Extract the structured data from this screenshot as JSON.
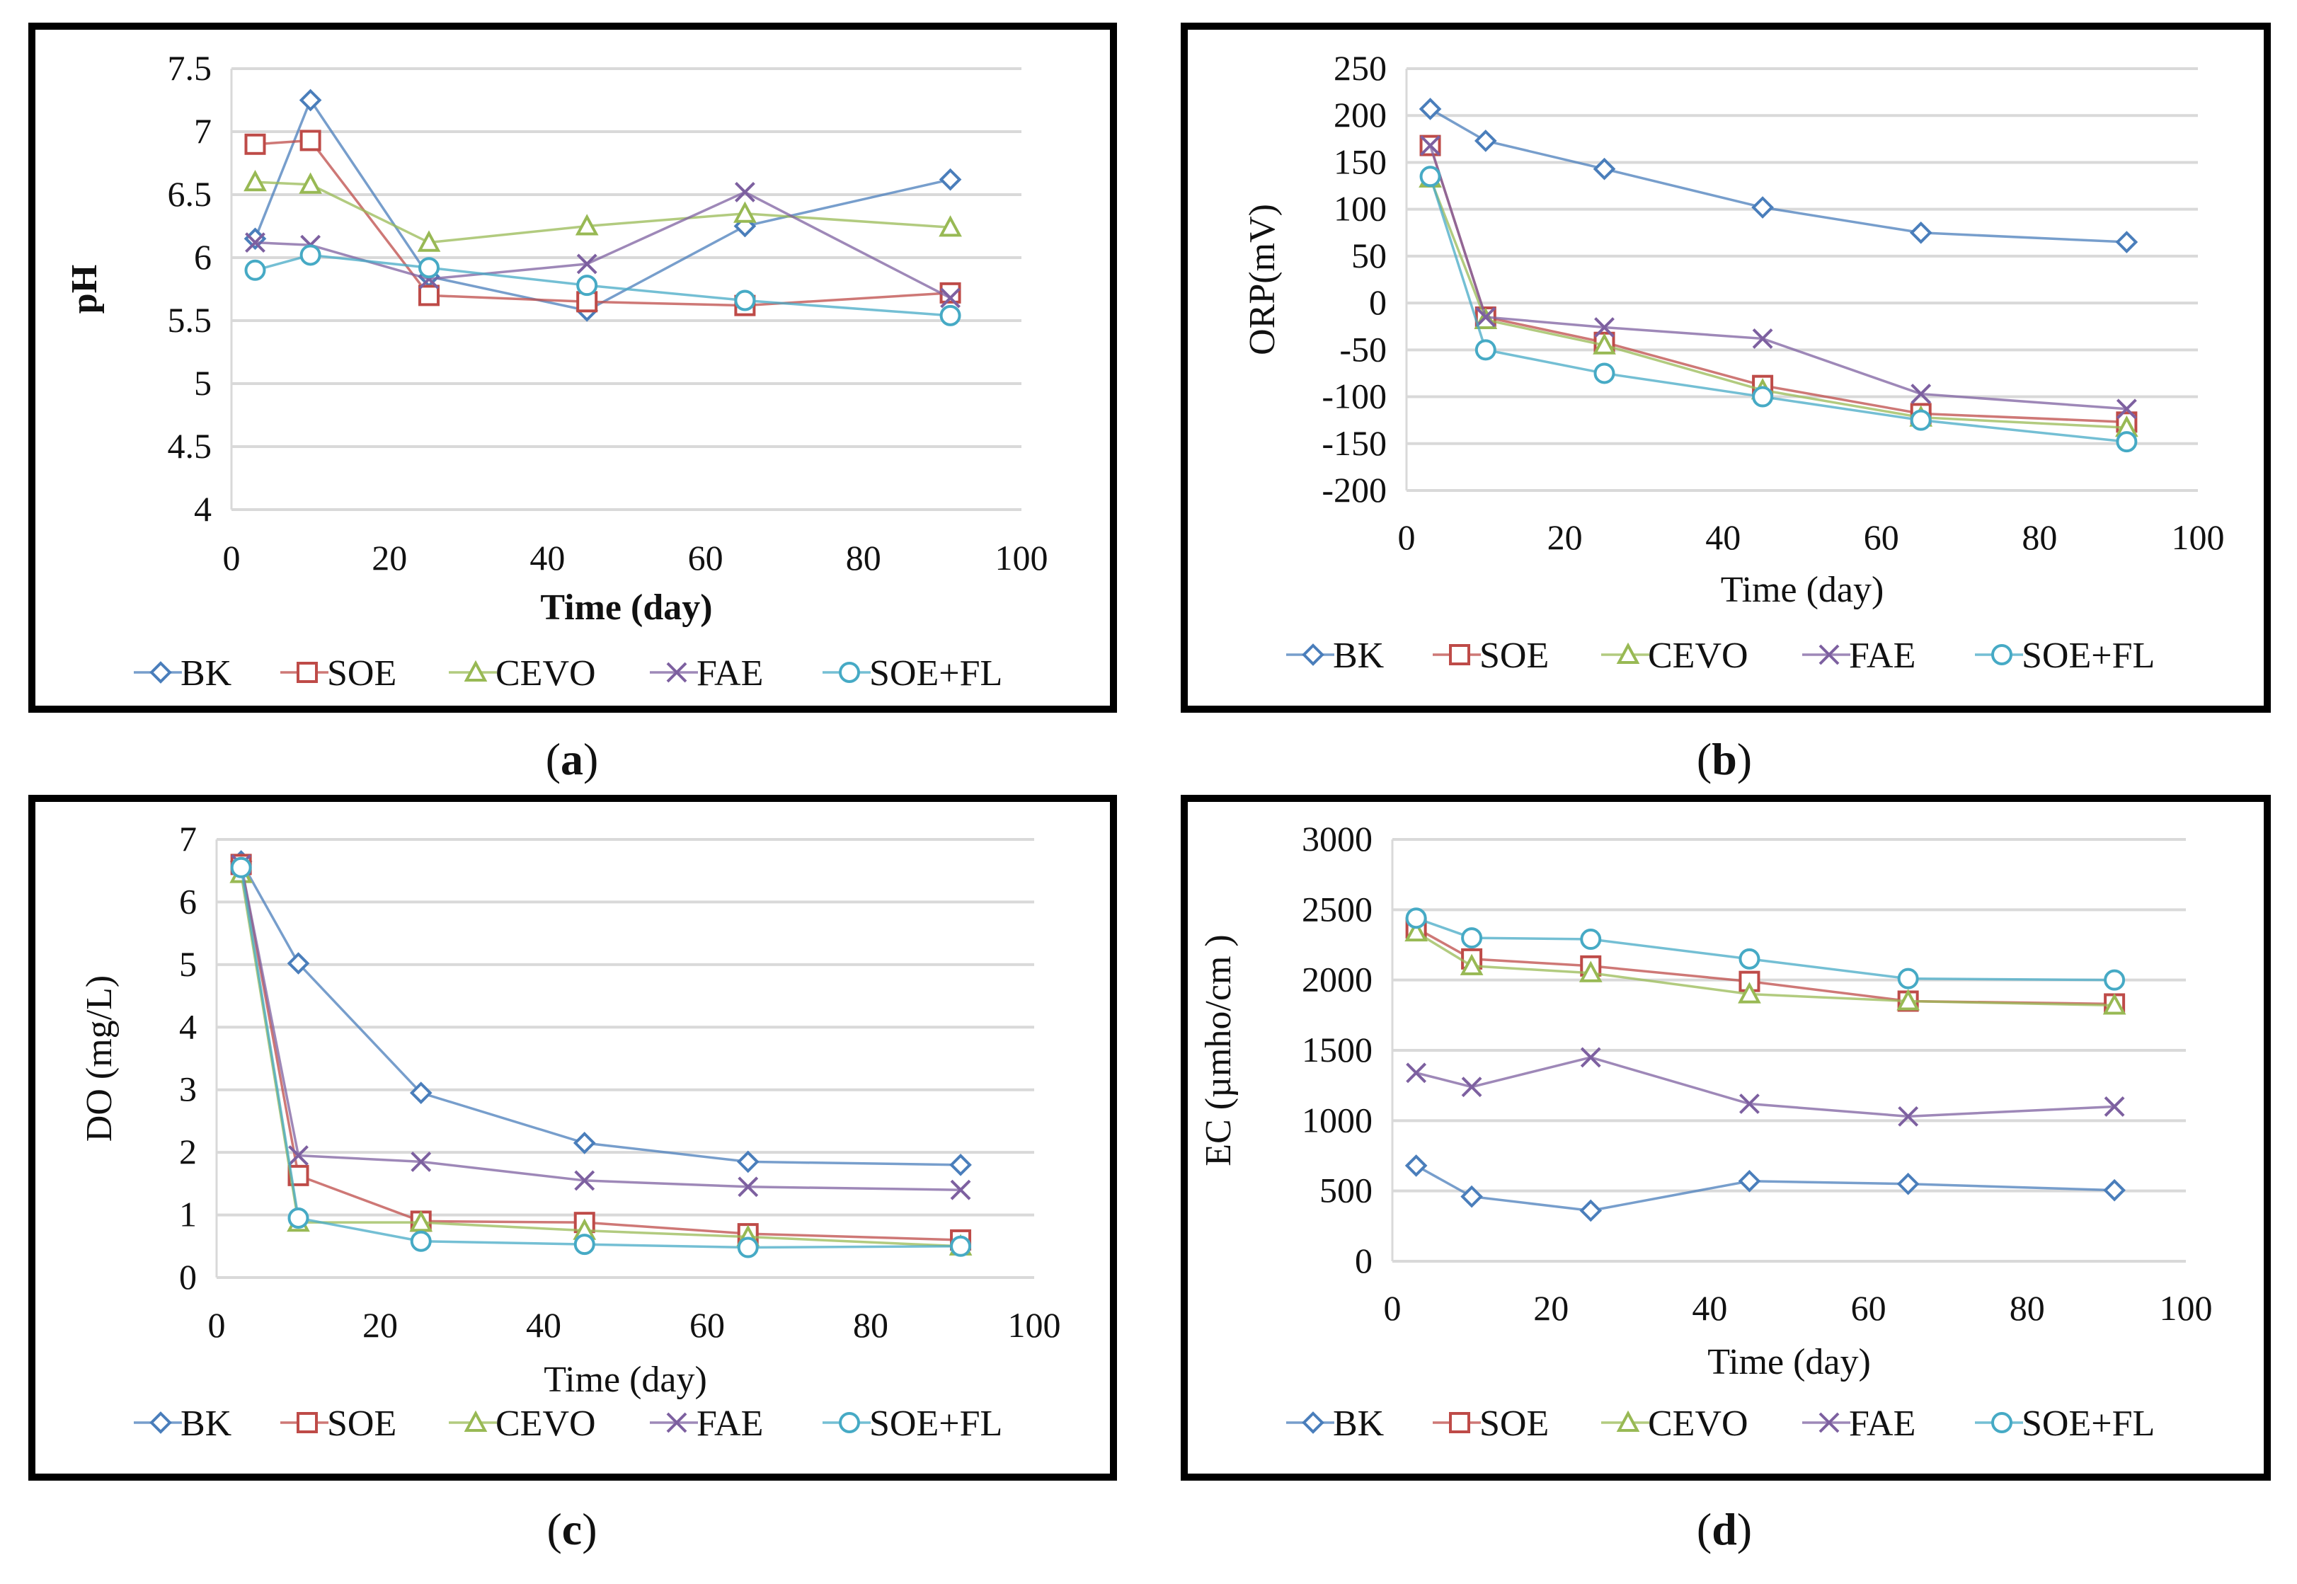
{
  "series_colors": {
    "BK": "#4a7ebb",
    "SOE": "#be4b48",
    "CEVO": "#98b954",
    "FAE": "#7d60a0",
    "SOE+FL": "#46aac5"
  },
  "chart_data": [
    {
      "type": "line",
      "panel_label": "a",
      "ylabel": "pH",
      "xlabel": "Time (day)",
      "xlim": [
        0,
        100
      ],
      "xticks": [
        0,
        20,
        40,
        60,
        80,
        100
      ],
      "ylim": [
        4,
        7.5
      ],
      "yticks": [
        "4",
        "4.5",
        "5",
        "5.5",
        "6",
        "6.5",
        "7",
        "7.5"
      ],
      "grid": true,
      "legend_position": "bottom",
      "x": [
        3,
        10,
        25,
        45,
        65,
        91
      ],
      "series": [
        {
          "name": "BK",
          "marker": "diamond",
          "values": [
            6.15,
            7.25,
            5.85,
            5.58,
            6.25,
            6.62
          ]
        },
        {
          "name": "SOE",
          "marker": "square",
          "values": [
            6.9,
            6.93,
            5.7,
            5.65,
            5.62,
            5.72
          ]
        },
        {
          "name": "CEVO",
          "marker": "triangle",
          "values": [
            6.6,
            6.58,
            6.12,
            6.25,
            6.35,
            6.24
          ]
        },
        {
          "name": "FAE",
          "marker": "x",
          "values": [
            6.12,
            6.1,
            5.83,
            5.95,
            6.52,
            5.68
          ]
        },
        {
          "name": "SOE+FL",
          "marker": "circle",
          "values": [
            5.9,
            6.02,
            5.92,
            5.78,
            5.66,
            5.54
          ]
        }
      ]
    },
    {
      "type": "line",
      "panel_label": "b",
      "ylabel": "ORP(mV)",
      "xlabel": "Time (day)",
      "xlim": [
        0,
        100
      ],
      "xticks": [
        0,
        20,
        40,
        60,
        80,
        100
      ],
      "ylim": [
        -200,
        250
      ],
      "yticks": [
        "-200",
        "-150",
        "-100",
        "-50",
        "0",
        "50",
        "100",
        "150",
        "200",
        "250"
      ],
      "grid": true,
      "legend_position": "bottom",
      "x": [
        3,
        10,
        25,
        45,
        65,
        91
      ],
      "series": [
        {
          "name": "BK",
          "marker": "diamond",
          "values": [
            207,
            173,
            143,
            102,
            75,
            65
          ]
        },
        {
          "name": "SOE",
          "marker": "square",
          "values": [
            168,
            -15,
            -42,
            -88,
            -118,
            -127
          ]
        },
        {
          "name": "CEVO",
          "marker": "triangle",
          "values": [
            133,
            -18,
            -45,
            -93,
            -122,
            -133
          ]
        },
        {
          "name": "FAE",
          "marker": "x",
          "values": [
            168,
            -15,
            -26,
            -38,
            -97,
            -113
          ]
        },
        {
          "name": "SOE+FL",
          "marker": "circle",
          "values": [
            135,
            -50,
            -75,
            -100,
            -125,
            -148
          ]
        }
      ]
    },
    {
      "type": "line",
      "panel_label": "c",
      "ylabel": "DO (mg/L)",
      "xlabel": "Time (day)",
      "xlim": [
        0,
        100
      ],
      "xticks": [
        0,
        20,
        40,
        60,
        80,
        100
      ],
      "ylim": [
        0,
        7
      ],
      "yticks": [
        "0",
        "1",
        "2",
        "3",
        "4",
        "5",
        "6",
        "7"
      ],
      "grid": true,
      "legend_position": "bottom",
      "x": [
        3,
        10,
        25,
        45,
        65,
        91
      ],
      "series": [
        {
          "name": "BK",
          "marker": "diamond",
          "values": [
            6.65,
            5.02,
            2.95,
            2.15,
            1.85,
            1.8
          ]
        },
        {
          "name": "SOE",
          "marker": "square",
          "values": [
            6.6,
            1.63,
            0.9,
            0.88,
            0.7,
            0.6
          ]
        },
        {
          "name": "CEVO",
          "marker": "triangle",
          "values": [
            6.45,
            0.88,
            0.88,
            0.75,
            0.65,
            0.5
          ]
        },
        {
          "name": "FAE",
          "marker": "x",
          "values": [
            6.6,
            1.95,
            1.85,
            1.55,
            1.45,
            1.4
          ]
        },
        {
          "name": "SOE+FL",
          "marker": "circle",
          "values": [
            6.55,
            0.95,
            0.58,
            0.53,
            0.48,
            0.5
          ]
        }
      ]
    },
    {
      "type": "line",
      "panel_label": "d",
      "ylabel": "EC (µmho/cm )",
      "xlabel": "Time (day)",
      "xlim": [
        0,
        100
      ],
      "xticks": [
        0,
        20,
        40,
        60,
        80,
        100
      ],
      "ylim": [
        0,
        3000
      ],
      "yticks": [
        "0",
        "500",
        "1000",
        "1500",
        "2000",
        "2500",
        "3000"
      ],
      "grid": true,
      "legend_position": "bottom",
      "x": [
        3,
        10,
        25,
        45,
        65,
        91
      ],
      "series": [
        {
          "name": "BK",
          "marker": "diamond",
          "values": [
            680,
            460,
            360,
            570,
            550,
            505
          ]
        },
        {
          "name": "SOE",
          "marker": "square",
          "values": [
            2370,
            2150,
            2100,
            1990,
            1850,
            1830
          ]
        },
        {
          "name": "CEVO",
          "marker": "triangle",
          "values": [
            2340,
            2100,
            2050,
            1900,
            1850,
            1820
          ]
        },
        {
          "name": "FAE",
          "marker": "x",
          "values": [
            1340,
            1240,
            1450,
            1120,
            1030,
            1100
          ]
        },
        {
          "name": "SOE+FL",
          "marker": "circle",
          "values": [
            2440,
            2300,
            2290,
            2150,
            2010,
            2000
          ]
        }
      ]
    }
  ]
}
